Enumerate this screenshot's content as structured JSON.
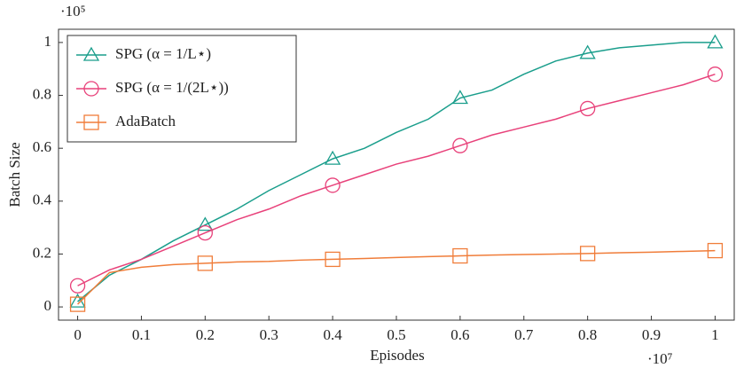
{
  "chart_data": {
    "type": "line",
    "x_label": "Episodes",
    "y_label": "Batch Size",
    "x_scale_label": "·10⁷",
    "y_scale_label": "·10⁵",
    "x": [
      0,
      0.05,
      0.1,
      0.15,
      0.2,
      0.25,
      0.3,
      0.35,
      0.4,
      0.45,
      0.5,
      0.55,
      0.6,
      0.65,
      0.7,
      0.75,
      0.8,
      0.85,
      0.9,
      0.95,
      1.0
    ],
    "series": [
      {
        "name": "SPG (α = 1/L⋆)",
        "color": "#1a9e8c",
        "marker": "triangle",
        "values": [
          0.02,
          0.12,
          0.18,
          0.25,
          0.31,
          0.37,
          0.44,
          0.5,
          0.56,
          0.6,
          0.66,
          0.71,
          0.79,
          0.82,
          0.88,
          0.93,
          0.96,
          0.98,
          0.99,
          1.0,
          1.0
        ]
      },
      {
        "name": "SPG (α = 1/(2L⋆))",
        "color": "#e8417a",
        "marker": "circle",
        "values": [
          0.08,
          0.14,
          0.18,
          0.23,
          0.28,
          0.33,
          0.37,
          0.42,
          0.46,
          0.5,
          0.54,
          0.57,
          0.61,
          0.65,
          0.68,
          0.71,
          0.75,
          0.78,
          0.81,
          0.84,
          0.88
        ]
      },
      {
        "name": "AdaBatch",
        "color": "#f07d3a",
        "marker": "square",
        "values": [
          0.01,
          0.13,
          0.15,
          0.16,
          0.165,
          0.17,
          0.172,
          0.177,
          0.18,
          0.183,
          0.187,
          0.19,
          0.193,
          0.196,
          0.198,
          0.2,
          0.202,
          0.205,
          0.207,
          0.21,
          0.213
        ]
      }
    ],
    "xlim": [
      -0.03,
      1.03
    ],
    "ylim": [
      -0.05,
      1.05
    ],
    "xticks": [
      0,
      0.1,
      0.2,
      0.3,
      0.4,
      0.5,
      0.6,
      0.7,
      0.8,
      0.9,
      1
    ],
    "yticks": [
      0,
      0.2,
      0.4,
      0.6,
      0.8,
      1
    ],
    "legend": "upper left"
  }
}
